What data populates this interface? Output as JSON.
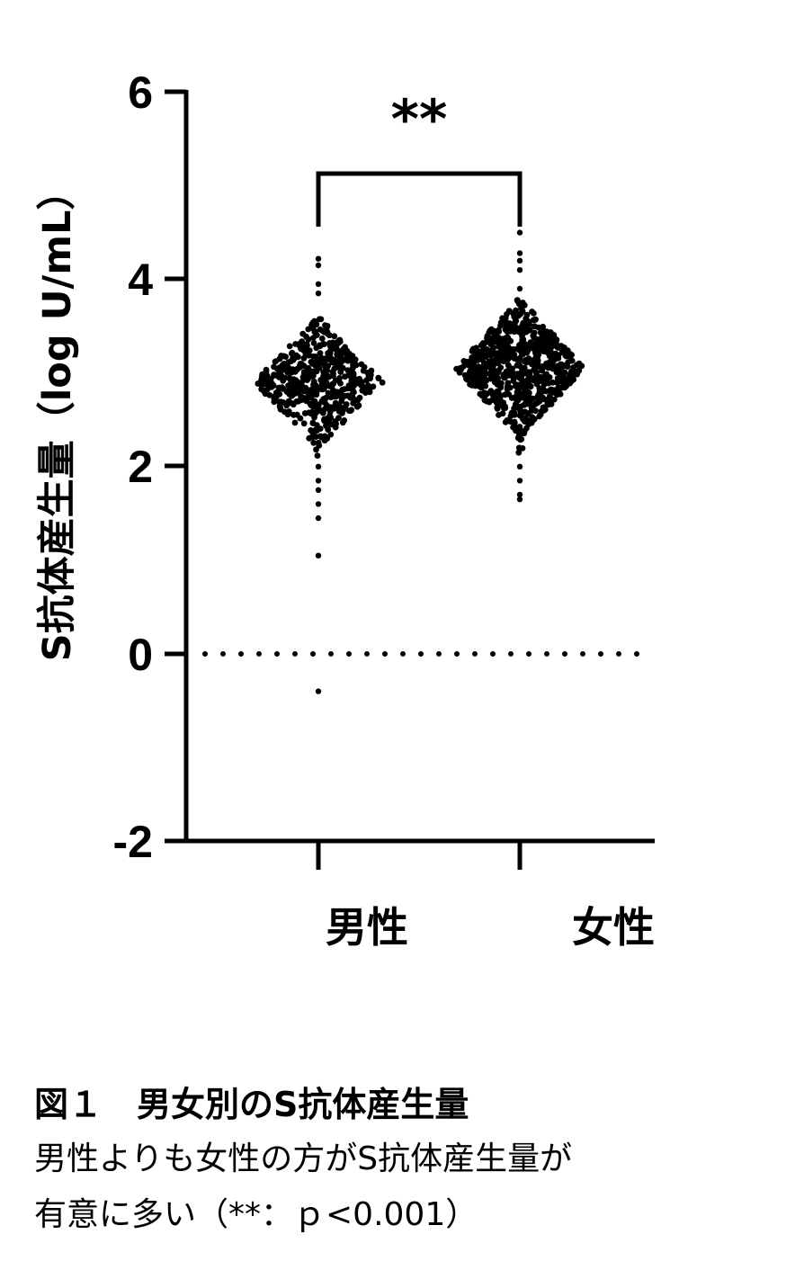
{
  "chart_data": {
    "type": "scatter",
    "ylabel": "S抗体産生量（log U/mL）",
    "ylim": [
      -2,
      6
    ],
    "yticks": [
      "6",
      "4",
      "2",
      "0",
      "-2"
    ],
    "categories": [
      "男性",
      "女性"
    ],
    "reference_line_y": 0,
    "significance": "**",
    "series": [
      {
        "category": "男性",
        "summary": {
          "center": 2.9,
          "range_min": -0.4,
          "range_max": 4.2
        },
        "outlier_values": [
          4.22,
          4.15,
          3.95,
          3.85,
          2.0,
          1.85,
          1.75,
          1.6,
          1.45,
          1.05,
          -0.4
        ]
      },
      {
        "category": "女性",
        "summary": {
          "center": 3.05,
          "range_min": 1.65,
          "range_max": 4.5
        },
        "outlier_values": [
          4.5,
          4.28,
          4.2,
          4.1,
          3.9,
          2.0,
          1.85,
          1.7,
          1.65
        ]
      }
    ]
  },
  "caption": {
    "title": "図１　男女別のS抗体産生量",
    "line1": "男性よりも女性の方がS抗体産生量が",
    "line2": "有意に多い（**：ｐ<0.001）"
  }
}
